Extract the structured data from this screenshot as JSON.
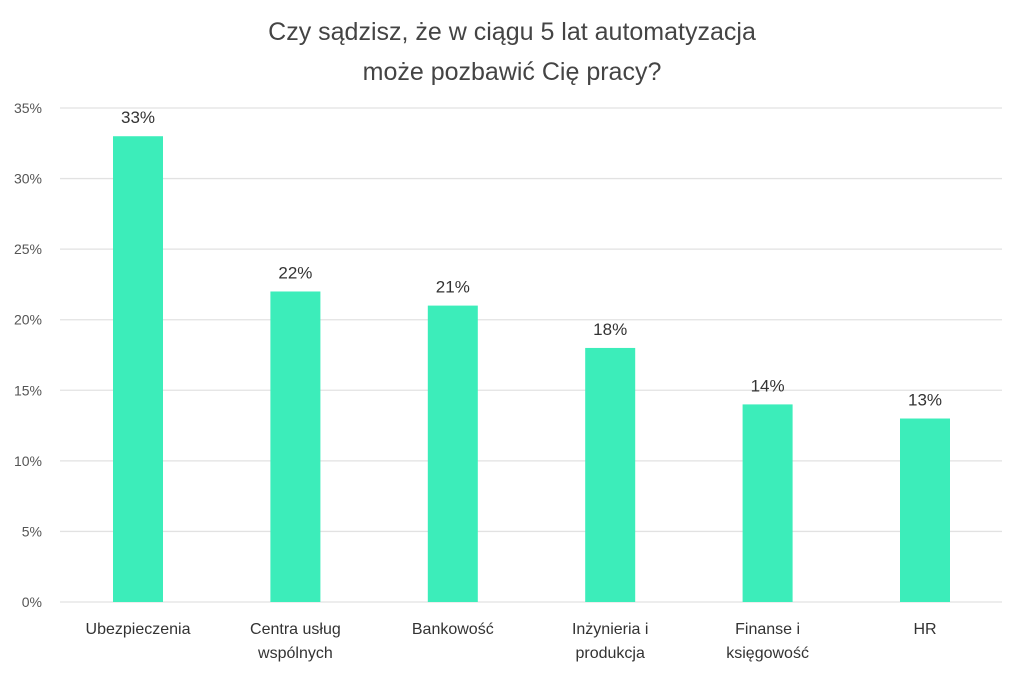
{
  "chart_data": {
    "type": "bar",
    "title": [
      "Czy sądzisz, że w ciągu 5 lat automatyzacja",
      "może pozbawić Cię pracy?"
    ],
    "categories": [
      [
        "Ubezpieczenia"
      ],
      [
        "Centra usług",
        "wspólnych"
      ],
      [
        "Bankowość"
      ],
      [
        "Inżynieria i",
        "produkcja"
      ],
      [
        "Finanse i",
        "księgowość"
      ],
      [
        "HR"
      ]
    ],
    "values": [
      33,
      22,
      21,
      18,
      14,
      13
    ],
    "data_labels": [
      "33%",
      "22%",
      "21%",
      "18%",
      "14%",
      "13%"
    ],
    "yticks": [
      0,
      5,
      10,
      15,
      20,
      25,
      30,
      35
    ],
    "ytick_labels": [
      "0%",
      "5%",
      "10%",
      "15%",
      "20%",
      "25%",
      "30%",
      "35%"
    ],
    "ylim": [
      0,
      35
    ],
    "xlabel": "",
    "ylabel": "",
    "grid": true,
    "bar_color": "#3CEDBA"
  }
}
